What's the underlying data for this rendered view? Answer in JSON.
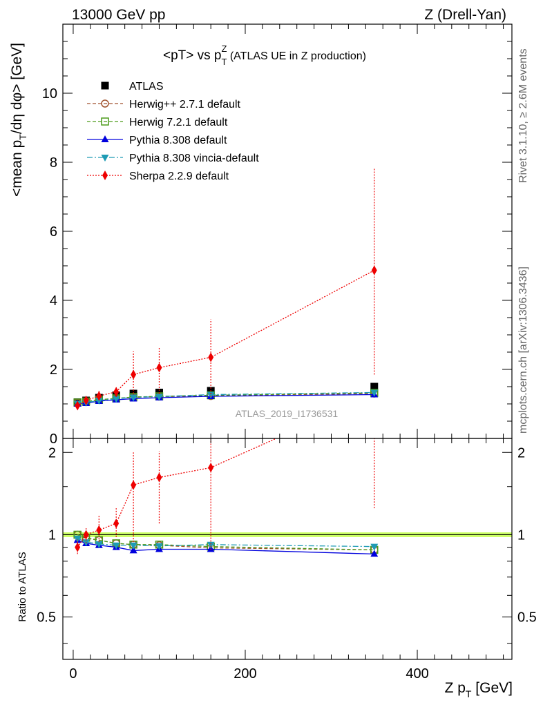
{
  "header": {
    "left": "13000 GeV pp",
    "right": "Z (Drell-Yan)"
  },
  "side_text": {
    "rivet": "Rivet 3.1.10, ≥ 2.6M events",
    "mcplots": "mcplots.cern.ch [arXiv:1306.3436]"
  },
  "chart_data": [
    {
      "type": "line",
      "title": "<pT> vs pTZ (ATLAS UE in Z production)",
      "title_parts": {
        "main": "<pT> vs p",
        "sub": "T",
        "sup": "Z",
        "rest": " (ATLAS UE in Z production)"
      },
      "ylabel": "<mean pT/dη dφ> [GeV]",
      "ylabel_parts": {
        "a": "<mean p",
        "sub": "T",
        "b": "/dη dφ> [GeV]"
      },
      "watermark": "ATLAS_2019_I1736531",
      "xlim": [
        -12,
        510
      ],
      "ylim": [
        0,
        12
      ],
      "yticks": [
        0,
        2,
        4,
        6,
        8,
        10
      ],
      "x": [
        5,
        15,
        30,
        50,
        70,
        100,
        160,
        350
      ],
      "series": [
        {
          "name": "ATLAS",
          "color": "#000000",
          "marker": "square-filled",
          "line": "none",
          "values": [
            1.05,
            1.1,
            1.18,
            1.25,
            1.3,
            1.33,
            1.38,
            1.5
          ]
        },
        {
          "name": "Herwig++ 2.7.1 default",
          "color": "#a0522d",
          "marker": "circle-open",
          "line": "dashed",
          "values": [
            1.03,
            1.06,
            1.12,
            1.16,
            1.19,
            1.21,
            1.23,
            1.3
          ]
        },
        {
          "name": "Herwig 7.2.1 default",
          "color": "#4a9a18",
          "marker": "square-open",
          "line": "dashed",
          "values": [
            1.04,
            1.07,
            1.12,
            1.16,
            1.2,
            1.22,
            1.25,
            1.32
          ]
        },
        {
          "name": "Pythia 8.308 default",
          "color": "#0000dd",
          "marker": "triangle-up",
          "line": "solid",
          "values": [
            1.0,
            1.02,
            1.08,
            1.12,
            1.15,
            1.18,
            1.22,
            1.27
          ]
        },
        {
          "name": "Pythia 8.308 vincia-default",
          "color": "#1e9bb4",
          "marker": "triangle-down",
          "line": "dashdot",
          "values": [
            1.01,
            1.04,
            1.1,
            1.15,
            1.19,
            1.21,
            1.27,
            1.33
          ]
        },
        {
          "name": "Sherpa 2.2.9 default",
          "color": "#ee0000",
          "marker": "diamond",
          "line": "dotted",
          "values": [
            0.95,
            1.1,
            1.23,
            1.35,
            1.85,
            2.05,
            2.35,
            4.87
          ],
          "err_lo": [
            0.88,
            1.04,
            1.1,
            1.2,
            1.3,
            1.3,
            1.2,
            1.85
          ],
          "err_hi": [
            1.02,
            1.16,
            1.38,
            1.52,
            2.52,
            2.65,
            3.45,
            7.85
          ]
        }
      ]
    },
    {
      "type": "line",
      "ylabel": "Ratio to ATLAS",
      "xlabel": "Z pT [GeV]",
      "xlabel_parts": {
        "a": "Z p",
        "sub": "T",
        "b": " [GeV]"
      },
      "xlim": [
        -12,
        510
      ],
      "ylim": [
        0.35,
        2.25
      ],
      "xticks": [
        0,
        200,
        400
      ],
      "yticks": [
        0.5,
        1,
        2
      ],
      "x": [
        5,
        15,
        30,
        50,
        70,
        100,
        160,
        350
      ],
      "reference_band": {
        "value": 1,
        "color": "#ccff66"
      },
      "series": [
        {
          "name": "Herwig++ 2.7.1 default",
          "values": [
            1.0,
            0.97,
            0.955,
            0.93,
            0.92,
            0.915,
            0.895,
            0.88
          ]
        },
        {
          "name": "Herwig 7.2.1 default",
          "values": [
            1.0,
            0.975,
            0.955,
            0.93,
            0.92,
            0.92,
            0.905,
            0.88
          ]
        },
        {
          "name": "Pythia 8.308 default",
          "values": [
            0.955,
            0.93,
            0.915,
            0.9,
            0.875,
            0.885,
            0.885,
            0.85
          ]
        },
        {
          "name": "Pythia 8.308 vincia-default",
          "values": [
            0.97,
            0.94,
            0.925,
            0.915,
            0.915,
            0.91,
            0.92,
            0.905
          ]
        },
        {
          "name": "Sherpa 2.2.9 default",
          "values": [
            0.9,
            1.0,
            1.04,
            1.1,
            1.52,
            1.62,
            1.76,
            3.25
          ],
          "err_lo": [
            0.85,
            0.93,
            0.94,
            0.98,
            0.94,
            1.1,
            0.88,
            1.25
          ],
          "err_hi": [
            0.96,
            1.06,
            1.18,
            1.25,
            2.0,
            2.02,
            2.55,
            5.2
          ]
        }
      ]
    }
  ]
}
